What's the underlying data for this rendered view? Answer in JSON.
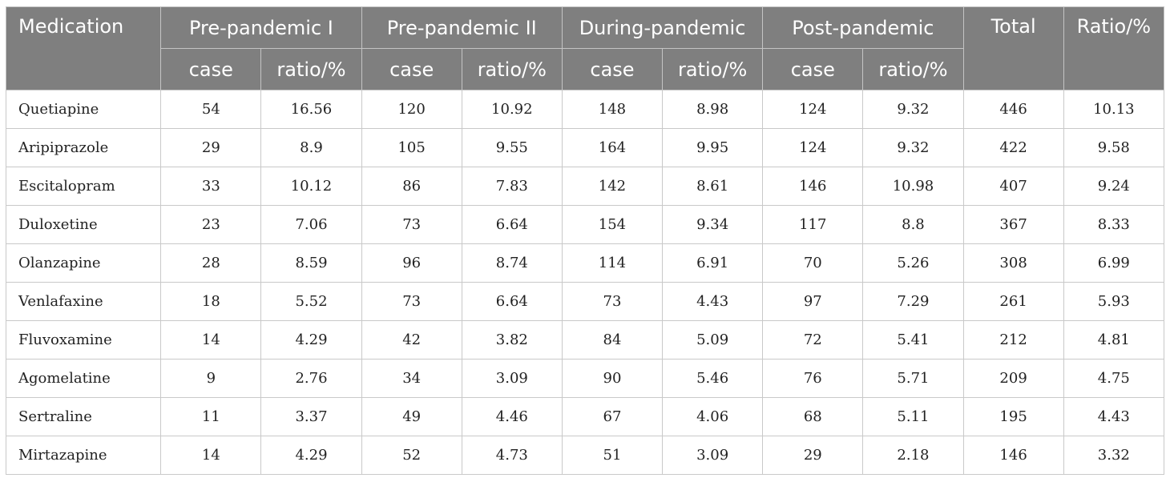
{
  "table": {
    "headers": {
      "medication": "Medication",
      "periods": [
        "Pre-pandemic I",
        "Pre-pandemic II",
        "During-pandemic",
        "Post-pandemic"
      ],
      "total": "Total",
      "ratio": "Ratio/%",
      "sub": [
        "case",
        "ratio/%",
        "case",
        "ratio/%",
        "case",
        "ratio/%",
        "case",
        "ratio/%"
      ]
    },
    "rows": [
      [
        "Quetiapine",
        "54",
        "16.56",
        "120",
        "10.92",
        "148",
        "8.98",
        "124",
        "9.32",
        "446",
        "10.13"
      ],
      [
        "Aripiprazole",
        "29",
        "8.9",
        "105",
        "9.55",
        "164",
        "9.95",
        "124",
        "9.32",
        "422",
        "9.58"
      ],
      [
        "Escitalopram",
        "33",
        "10.12",
        "86",
        "7.83",
        "142",
        "8.61",
        "146",
        "10.98",
        "407",
        "9.24"
      ],
      [
        "Duloxetine",
        "23",
        "7.06",
        "73",
        "6.64",
        "154",
        "9.34",
        "117",
        "8.8",
        "367",
        "8.33"
      ],
      [
        "Olanzapine",
        "28",
        "8.59",
        "96",
        "8.74",
        "114",
        "6.91",
        "70",
        "5.26",
        "308",
        "6.99"
      ],
      [
        "Venlafaxine",
        "18",
        "5.52",
        "73",
        "6.64",
        "73",
        "4.43",
        "97",
        "7.29",
        "261",
        "5.93"
      ],
      [
        "Fluvoxamine",
        "14",
        "4.29",
        "42",
        "3.82",
        "84",
        "5.09",
        "72",
        "5.41",
        "212",
        "4.81"
      ],
      [
        "Agomelatine",
        "9",
        "2.76",
        "34",
        "3.09",
        "90",
        "5.46",
        "76",
        "5.71",
        "209",
        "4.75"
      ],
      [
        "Sertraline",
        "11",
        "3.37",
        "49",
        "4.46",
        "67",
        "4.06",
        "68",
        "5.11",
        "195",
        "4.43"
      ],
      [
        "Mirtazapine",
        "14",
        "4.29",
        "52",
        "4.73",
        "51",
        "3.09",
        "29",
        "2.18",
        "146",
        "3.32"
      ]
    ]
  }
}
